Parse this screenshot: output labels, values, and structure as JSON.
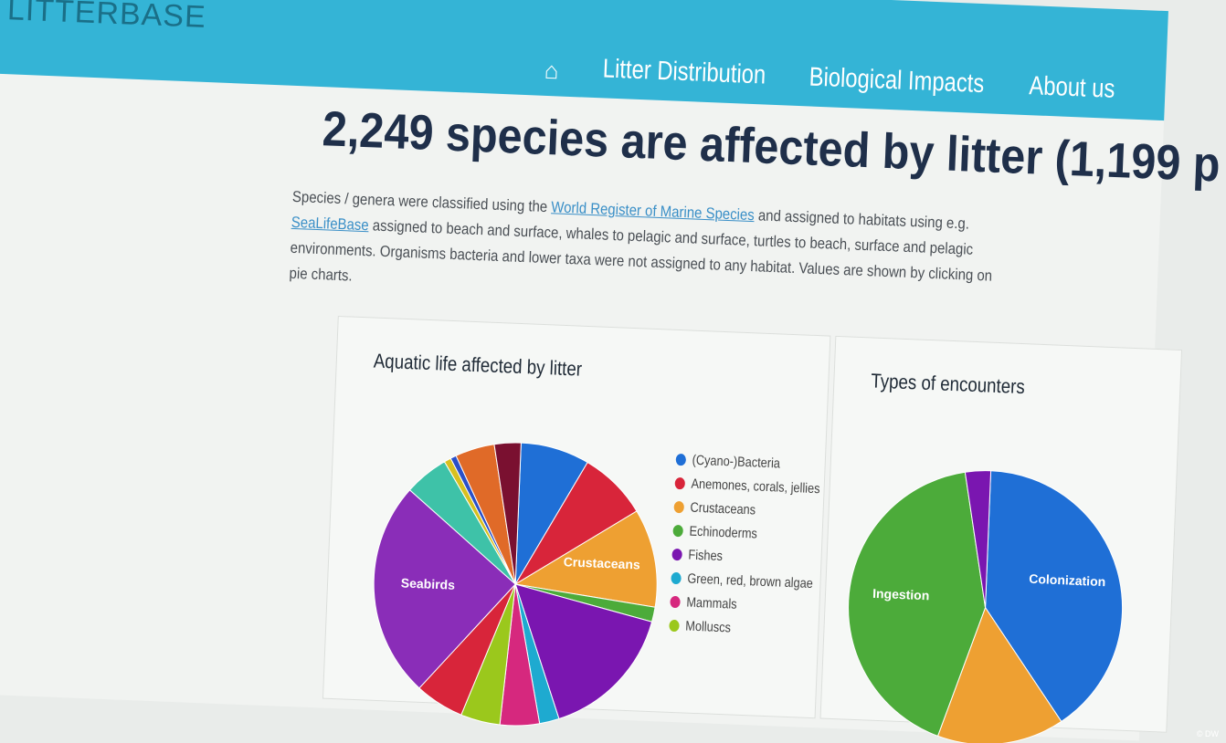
{
  "header": {
    "logo": "LITTERBASE",
    "nav": [
      {
        "label": "Litter Distribution"
      },
      {
        "label": "Biological Impacts"
      },
      {
        "label": "About us"
      }
    ],
    "home_icon": "home-icon",
    "color": "#34b4d6"
  },
  "main": {
    "title": "2,249 species are affected by litter (1,199 p",
    "desc_1": "Species / genera were classified using the ",
    "link_1": "World Register of Marine Species",
    "desc_2": " and assigned to habitats using e.g. ",
    "link_2": "SeaLifeBase",
    "desc_3": " assigned to beach and surface, whales to pelagic and surface, turtles to beach, surface and pelagic environments. Organisms",
    "desc_4": " bacteria and lower taxa were not assigned to any habitat. Values are shown by clicking on pie charts."
  },
  "chart1": {
    "title": "Aquatic life affected by litter",
    "legend": [
      {
        "label": "(Cyano-)Bacteria",
        "color": "#1f6fd6"
      },
      {
        "label": "Anemones, corals, jellies",
        "color": "#d8253a"
      },
      {
        "label": "Crustaceans",
        "color": "#eea032"
      },
      {
        "label": "Echinoderms",
        "color": "#4cab3a"
      },
      {
        "label": "Fishes",
        "color": "#7a16b0"
      },
      {
        "label": "Green, red, brown algae",
        "color": "#1eaad0"
      },
      {
        "label": "Mammals",
        "color": "#d6287e"
      },
      {
        "label": "Molluscs",
        "color": "#9bc81c"
      }
    ],
    "slices": [
      {
        "label": "",
        "color": "#1f6fd6",
        "value": 7
      },
      {
        "label": "",
        "color": "#d8253a",
        "value": 7
      },
      {
        "label": "Crustaceans",
        "color": "#eea032",
        "value": 10
      },
      {
        "label": "",
        "color": "#4cab3a",
        "value": 1.5
      },
      {
        "label": "",
        "color": "#7a16b0",
        "value": 14
      },
      {
        "label": "",
        "color": "#1eaad0",
        "value": 2
      },
      {
        "label": "",
        "color": "#d6287e",
        "value": 4
      },
      {
        "label": "",
        "color": "#9bc81c",
        "value": 4
      },
      {
        "label": "",
        "color": "#d8253a",
        "value": 5
      },
      {
        "label": "Seabirds",
        "color": "#8a2db8",
        "value": 22
      },
      {
        "label": "",
        "color": "#3ec2a8",
        "value": 4.5
      },
      {
        "label": "",
        "color": "#d8c020",
        "value": 0.7
      },
      {
        "label": "",
        "color": "#2a50c8",
        "value": 0.6
      },
      {
        "label": "",
        "color": "#e06a28",
        "value": 4
      },
      {
        "label": "",
        "color": "#7a1030",
        "value": 2.7
      }
    ]
  },
  "chart2": {
    "title": "Types of encounters",
    "slices": [
      {
        "label": "Colonization",
        "color": "#1f6fd6",
        "value": 40
      },
      {
        "label": "",
        "color": "#eea032",
        "value": 15
      },
      {
        "label": "Ingestion",
        "color": "#4cab3a",
        "value": 42
      },
      {
        "label": "",
        "color": "#7a16b0",
        "value": 3
      }
    ]
  },
  "watermark": "© DW"
}
